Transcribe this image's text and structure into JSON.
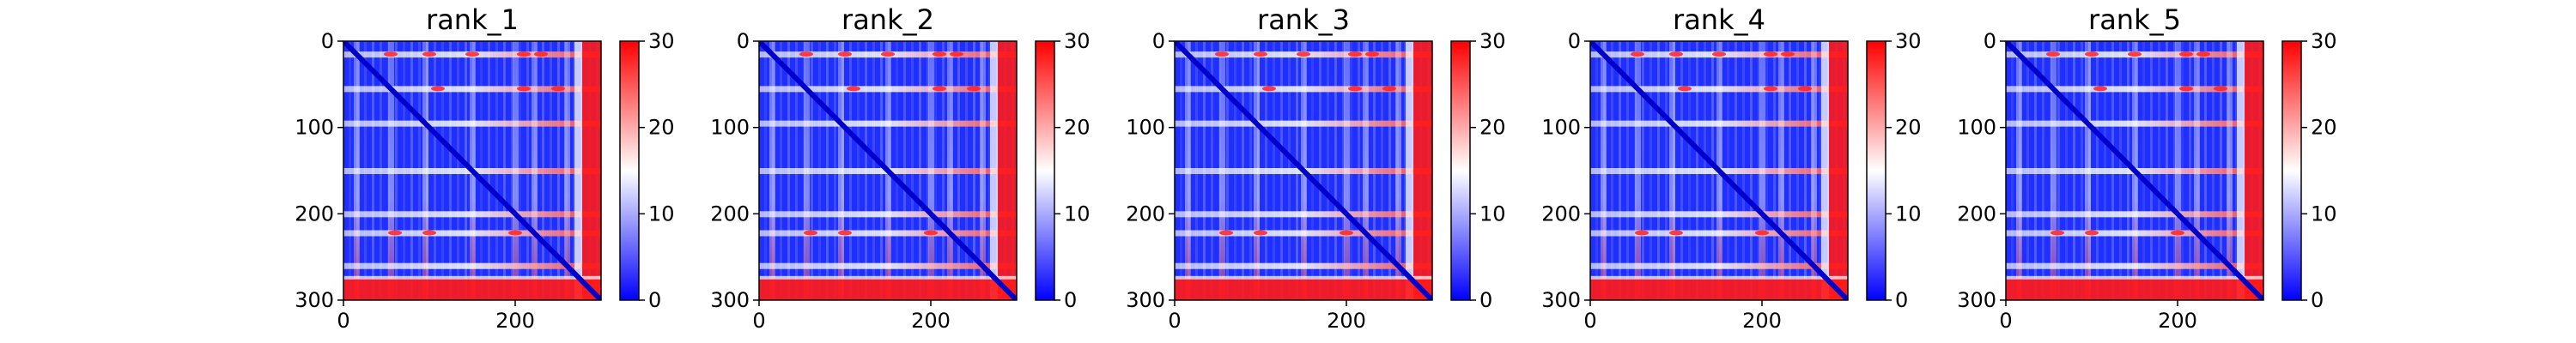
{
  "chart_data": [
    {
      "type": "heatmap",
      "title": "rank_1",
      "xlim": [
        0,
        300
      ],
      "ylim": [
        0,
        300
      ],
      "y_inverted": true,
      "xticks": [
        0,
        200
      ],
      "yticks": [
        0,
        100,
        200,
        300
      ],
      "colorbar": {
        "min": 0,
        "max": 30,
        "ticks": [
          0,
          10,
          20,
          30
        ],
        "colormap": "bwr",
        "colors": [
          "#0000ff",
          "#ffffff",
          "#ff0000"
        ]
      },
      "bands": [
        15,
        55,
        95,
        150,
        200,
        222,
        260
      ],
      "diagonal": true,
      "terminal_high_start": 275,
      "grid": false
    },
    {
      "type": "heatmap",
      "title": "rank_2",
      "xlim": [
        0,
        300
      ],
      "ylim": [
        0,
        300
      ],
      "y_inverted": true,
      "xticks": [
        0,
        200
      ],
      "yticks": [
        0,
        100,
        200,
        300
      ],
      "colorbar": {
        "min": 0,
        "max": 30,
        "ticks": [
          0,
          10,
          20,
          30
        ],
        "colormap": "bwr",
        "colors": [
          "#0000ff",
          "#ffffff",
          "#ff0000"
        ]
      },
      "bands": [
        15,
        55,
        95,
        150,
        200,
        222,
        260
      ],
      "diagonal": true,
      "terminal_high_start": 275,
      "grid": false
    },
    {
      "type": "heatmap",
      "title": "rank_3",
      "xlim": [
        0,
        300
      ],
      "ylim": [
        0,
        300
      ],
      "y_inverted": true,
      "xticks": [
        0,
        200
      ],
      "yticks": [
        0,
        100,
        200,
        300
      ],
      "colorbar": {
        "min": 0,
        "max": 30,
        "ticks": [
          0,
          10,
          20,
          30
        ],
        "colormap": "bwr",
        "colors": [
          "#0000ff",
          "#ffffff",
          "#ff0000"
        ]
      },
      "bands": [
        15,
        55,
        95,
        150,
        200,
        222,
        260
      ],
      "diagonal": true,
      "terminal_high_start": 275,
      "grid": false
    },
    {
      "type": "heatmap",
      "title": "rank_4",
      "xlim": [
        0,
        300
      ],
      "ylim": [
        0,
        300
      ],
      "y_inverted": true,
      "xticks": [
        0,
        200
      ],
      "yticks": [
        0,
        100,
        200,
        300
      ],
      "colorbar": {
        "min": 0,
        "max": 30,
        "ticks": [
          0,
          10,
          20,
          30
        ],
        "colormap": "bwr",
        "colors": [
          "#0000ff",
          "#ffffff",
          "#ff0000"
        ]
      },
      "bands": [
        15,
        55,
        95,
        150,
        200,
        222,
        260
      ],
      "diagonal": true,
      "terminal_high_start": 275,
      "grid": false
    },
    {
      "type": "heatmap",
      "title": "rank_5",
      "xlim": [
        0,
        300
      ],
      "ylim": [
        0,
        300
      ],
      "y_inverted": true,
      "xticks": [
        0,
        200
      ],
      "yticks": [
        0,
        100,
        200,
        300
      ],
      "colorbar": {
        "min": 0,
        "max": 30,
        "ticks": [
          0,
          10,
          20,
          30
        ],
        "colormap": "bwr",
        "colors": [
          "#0000ff",
          "#ffffff",
          "#ff0000"
        ]
      },
      "bands": [
        15,
        55,
        95,
        150,
        200,
        222,
        260
      ],
      "diagonal": true,
      "terminal_high_start": 275,
      "grid": false
    }
  ]
}
